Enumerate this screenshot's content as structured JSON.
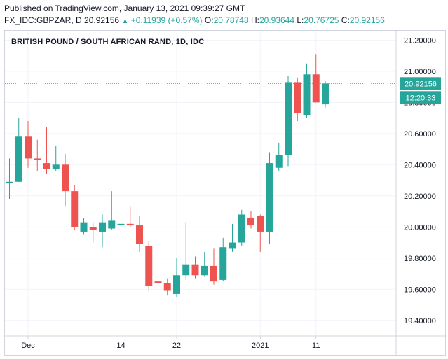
{
  "header": {
    "published": "Published on TradingView.com, January 13, 2021 09:39:27 GMT",
    "symbol": "FX_IDC:GBPZAR, D",
    "last": "20.92156",
    "change": "+0.11939 (+0.57%)",
    "o_label": "O:",
    "o_value": "20.78748",
    "h_label": "H:",
    "h_value": "20.93644",
    "l_label": "L:",
    "l_value": "20.76725",
    "c_label": "C:",
    "c_value": "20.92156"
  },
  "colors": {
    "up": "#26a69a",
    "down": "#ef5350",
    "grid": "#f0f3fa",
    "axis": "#d1d4dc",
    "last_line": "#26a69a"
  },
  "price_tags": {
    "last_price": "20.92156",
    "countdown": "12:20:33"
  },
  "chart_data": {
    "type": "candlestick",
    "title": "BRITISH POUND / SOUTH AFRICAN RAND, 1D, IDC",
    "y_ticks": [
      "21.20000",
      "21.00000",
      "20.80000",
      "20.60000",
      "20.40000",
      "20.20000",
      "20.00000",
      "19.80000",
      "19.60000",
      "19.40000"
    ],
    "y_range": [
      19.3,
      21.26
    ],
    "x_ticks": [
      {
        "label": "Dec",
        "index": 2
      },
      {
        "label": "14",
        "index": 12
      },
      {
        "label": "22",
        "index": 18
      },
      {
        "label": "2021",
        "index": 27
      },
      {
        "label": "11",
        "index": 33
      }
    ],
    "last_price": 20.92156,
    "candles": [
      {
        "o": 20.29,
        "h": 20.44,
        "l": 20.18,
        "c": 20.29
      },
      {
        "o": 20.29,
        "h": 20.7,
        "l": 20.29,
        "c": 20.58
      },
      {
        "o": 20.58,
        "h": 20.68,
        "l": 20.38,
        "c": 20.44
      },
      {
        "o": 20.44,
        "h": 20.56,
        "l": 20.36,
        "c": 20.43
      },
      {
        "o": 20.41,
        "h": 20.64,
        "l": 20.34,
        "c": 20.37
      },
      {
        "o": 20.37,
        "h": 20.52,
        "l": 20.36,
        "c": 20.4
      },
      {
        "o": 20.4,
        "h": 20.47,
        "l": 20.13,
        "c": 20.23
      },
      {
        "o": 20.23,
        "h": 20.27,
        "l": 19.98,
        "c": 20.0
      },
      {
        "o": 19.97,
        "h": 20.06,
        "l": 19.95,
        "c": 20.03
      },
      {
        "o": 20.0,
        "h": 20.03,
        "l": 19.9,
        "c": 19.98
      },
      {
        "o": 19.97,
        "h": 20.08,
        "l": 19.87,
        "c": 20.03
      },
      {
        "o": 19.99,
        "h": 20.23,
        "l": 19.98,
        "c": 20.04
      },
      {
        "o": 20.02,
        "h": 20.07,
        "l": 19.86,
        "c": 20.02
      },
      {
        "o": 20.02,
        "h": 20.13,
        "l": 20.0,
        "c": 20.01
      },
      {
        "o": 20.01,
        "h": 20.07,
        "l": 19.84,
        "c": 19.89
      },
      {
        "o": 19.88,
        "h": 19.91,
        "l": 19.59,
        "c": 19.62
      },
      {
        "o": 19.65,
        "h": 19.76,
        "l": 19.43,
        "c": 19.64
      },
      {
        "o": 19.64,
        "h": 19.67,
        "l": 19.56,
        "c": 19.59
      },
      {
        "o": 19.57,
        "h": 19.8,
        "l": 19.55,
        "c": 19.69
      },
      {
        "o": 19.69,
        "h": 20.03,
        "l": 19.66,
        "c": 19.76
      },
      {
        "o": 19.76,
        "h": 19.81,
        "l": 19.67,
        "c": 19.69
      },
      {
        "o": 19.69,
        "h": 19.84,
        "l": 19.68,
        "c": 19.75
      },
      {
        "o": 19.75,
        "h": 19.86,
        "l": 19.63,
        "c": 19.65
      },
      {
        "o": 19.66,
        "h": 19.93,
        "l": 19.65,
        "c": 19.87
      },
      {
        "o": 19.86,
        "h": 20.02,
        "l": 19.84,
        "c": 19.9
      },
      {
        "o": 19.9,
        "h": 20.11,
        "l": 19.88,
        "c": 20.08
      },
      {
        "o": 20.06,
        "h": 20.1,
        "l": 19.99,
        "c": 20.01
      },
      {
        "o": 20.07,
        "h": 20.08,
        "l": 19.84,
        "c": 19.97
      },
      {
        "o": 19.97,
        "h": 20.48,
        "l": 19.89,
        "c": 20.41
      },
      {
        "o": 20.38,
        "h": 20.54,
        "l": 20.36,
        "c": 20.46
      },
      {
        "o": 20.46,
        "h": 20.97,
        "l": 20.39,
        "c": 20.93
      },
      {
        "o": 20.93,
        "h": 20.96,
        "l": 20.68,
        "c": 20.73
      },
      {
        "o": 20.72,
        "h": 21.05,
        "l": 20.7,
        "c": 20.98
      },
      {
        "o": 20.98,
        "h": 21.11,
        "l": 20.8,
        "c": 20.8
      },
      {
        "o": 20.78748,
        "h": 20.93644,
        "l": 20.76725,
        "c": 20.92156
      }
    ]
  }
}
